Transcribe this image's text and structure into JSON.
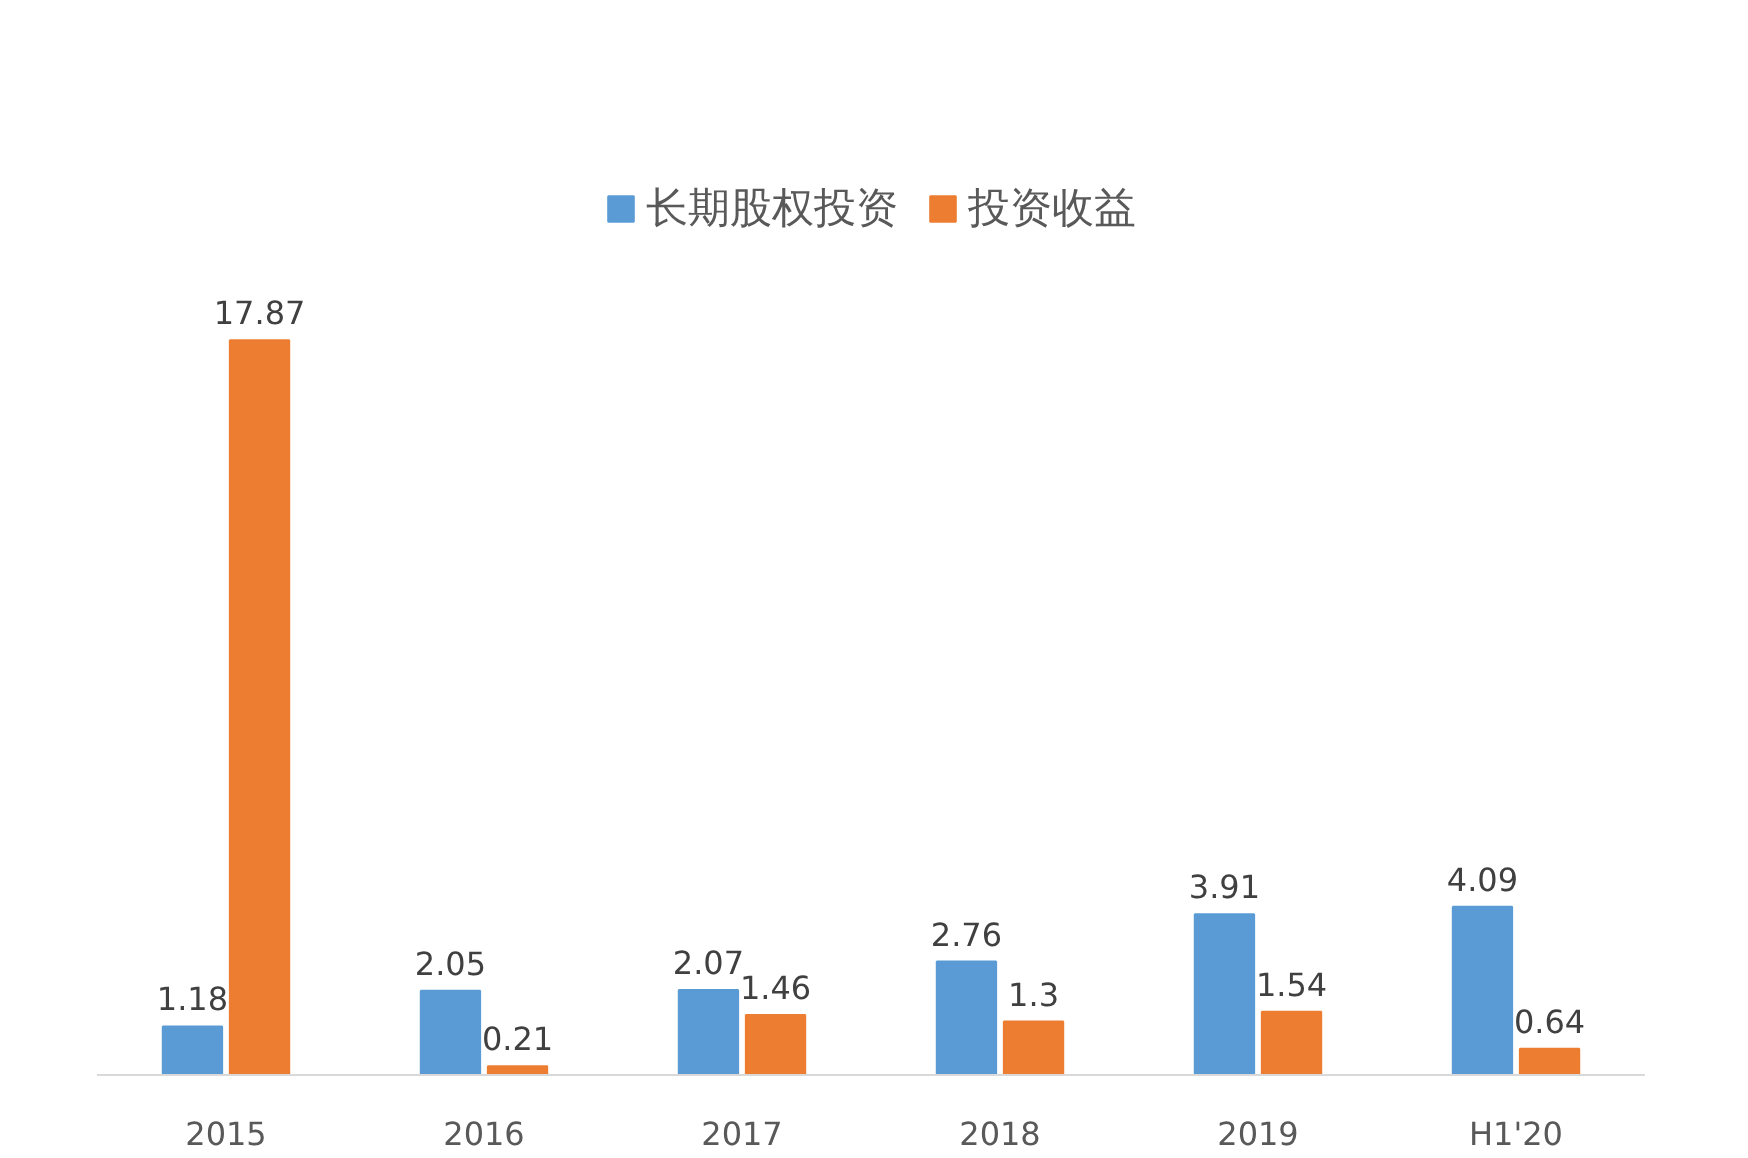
{
  "chart_data": {
    "type": "bar",
    "categories": [
      "2015",
      "2016",
      "2017",
      "2018",
      "2019",
      "H1'20"
    ],
    "series": [
      {
        "name": "长期股权投资",
        "color": "#5b9bd5",
        "values": [
          1.18,
          2.05,
          2.07,
          2.76,
          3.91,
          4.09
        ]
      },
      {
        "name": "投资收益",
        "color": "#ed7d31",
        "values": [
          17.87,
          0.21,
          1.46,
          1.3,
          1.54,
          0.64
        ]
      }
    ],
    "data_labels": true,
    "legend": "top",
    "grid": false
  }
}
